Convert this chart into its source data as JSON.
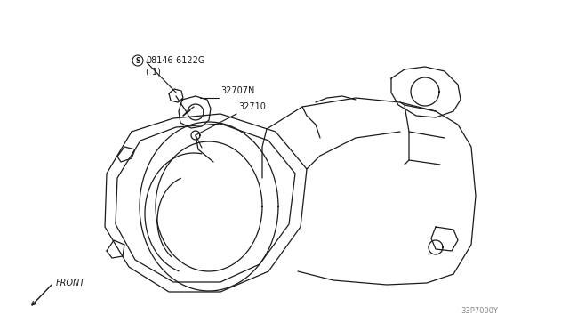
{
  "bg_color": "#ffffff",
  "line_color": "#1a1a1a",
  "labels": {
    "part1_id": "08146-6122G",
    "part1_qty": "( 1)",
    "part1_symbol": "S",
    "part2_id": "32707N",
    "part3_id": "32710",
    "front_label": "FRONT",
    "ref_num": "33P7000Y"
  }
}
